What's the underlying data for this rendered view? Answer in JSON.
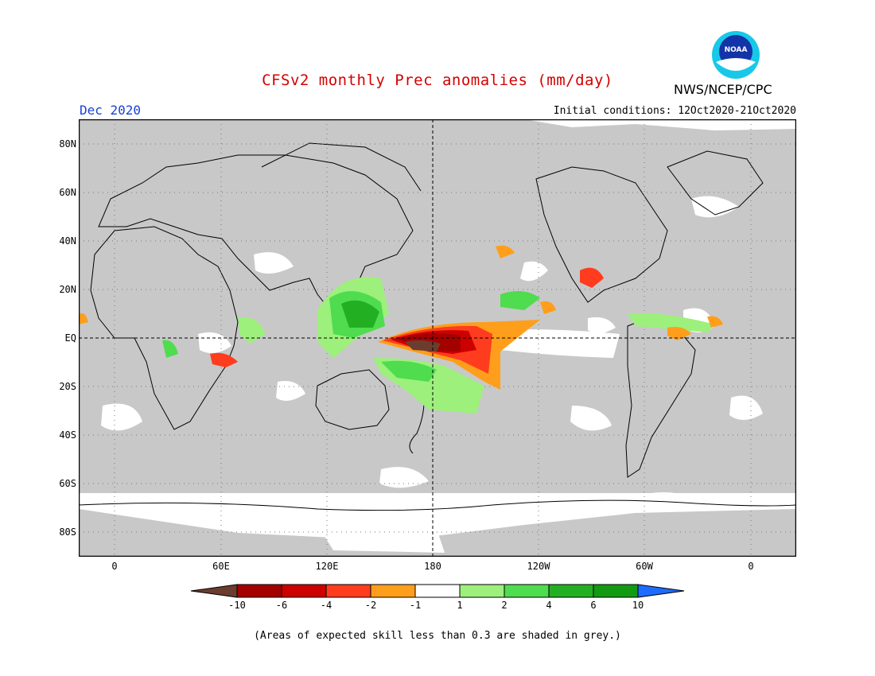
{
  "title": "CFSv2 monthly Prec anomalies (mm/day)",
  "month": "Dec 2020",
  "initial_conditions": "Initial conditions: 12Oct2020-21Oct2020",
  "agency": "NWS/NCEP/CPC",
  "logo_text": "NOAA",
  "note": "(Areas of expected skill less than 0.3 are shaded in grey.)",
  "map": {
    "lat_labels": [
      "80N",
      "60N",
      "40N",
      "20N",
      "EQ",
      "20S",
      "40S",
      "60S",
      "80S"
    ],
    "lon_labels": [
      "0",
      "60E",
      "120E",
      "180",
      "120W",
      "60W",
      "0"
    ],
    "colors": {
      "skill_mask": "#c8c8c8",
      "background": "#ffffff"
    }
  },
  "colorbar": {
    "labels": [
      "-10",
      "-6",
      "-4",
      "-2",
      "-1",
      "1",
      "2",
      "4",
      "6",
      "10"
    ],
    "colors": [
      "#6b3d2e",
      "#a50000",
      "#cc0000",
      "#ff3c1e",
      "#ff9e1a",
      "#ffffff",
      "#9df07c",
      "#4fdc4f",
      "#22b022",
      "#139a13",
      "#1e6cff"
    ]
  }
}
